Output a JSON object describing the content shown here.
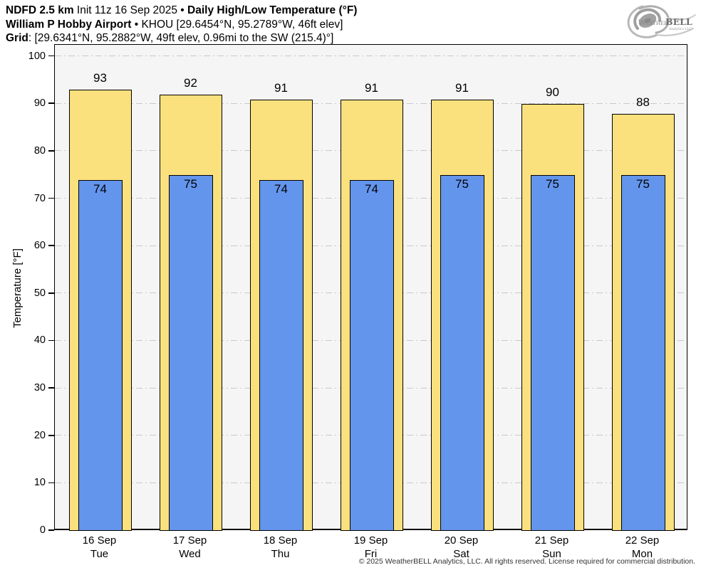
{
  "header": {
    "lines": [
      {
        "segments": [
          {
            "text": "NDFD 2.5 km",
            "bold": true
          },
          {
            "text": " Init 11z 16 Sep 2025 • ",
            "bold": false
          },
          {
            "text": "Daily High/Low Temperature (°F)",
            "bold": true
          }
        ]
      },
      {
        "segments": [
          {
            "text": "William P Hobby Airport",
            "bold": true
          },
          {
            "text": " • KHOU [29.6454°N, 95.2789°W, 46ft elev]",
            "bold": false
          }
        ]
      },
      {
        "segments": [
          {
            "text": "Grid",
            "bold": true
          },
          {
            "text": ": [29.6341°N, 95.2882°W, 49ft elev, 0.96mi to the SW (215.4)°]",
            "bold": false
          }
        ]
      }
    ]
  },
  "logo": {
    "brand_prefix": "Weather",
    "brand_suffix": "BELL",
    "subtext": "Analytics LLC"
  },
  "chart_data": {
    "type": "bar",
    "title": "Daily High/Low Temperature (°F)",
    "categories": [
      "16 Sep",
      "17 Sep",
      "18 Sep",
      "19 Sep",
      "20 Sep",
      "21 Sep",
      "22 Sep"
    ],
    "weekdays": [
      "Tue",
      "Wed",
      "Thu",
      "Fri",
      "Sat",
      "Sun",
      "Mon"
    ],
    "series": [
      {
        "name": "Daily High",
        "values": [
          93,
          92,
          91,
          91,
          91,
          90,
          88
        ],
        "color": "#FBE17E"
      },
      {
        "name": "Daily Low",
        "values": [
          74,
          75,
          74,
          74,
          75,
          75,
          75
        ],
        "color": "#6495ED"
      }
    ],
    "ylabel": "Temperature [°F]",
    "ylim": [
      0,
      102.5
    ],
    "yticks": [
      0,
      10,
      20,
      30,
      40,
      50,
      60,
      70,
      80,
      90,
      100
    ],
    "grid": "horizontal dash-dot",
    "legend": "none",
    "plot_background": "#f5f5f5",
    "gridline_color": "#c9c9c9",
    "bar_border_color": "#000000"
  },
  "footer": {
    "copyright": "© 2025 WeatherBELL Analytics, LLC. All rights reserved. License required for commercial distribution."
  }
}
